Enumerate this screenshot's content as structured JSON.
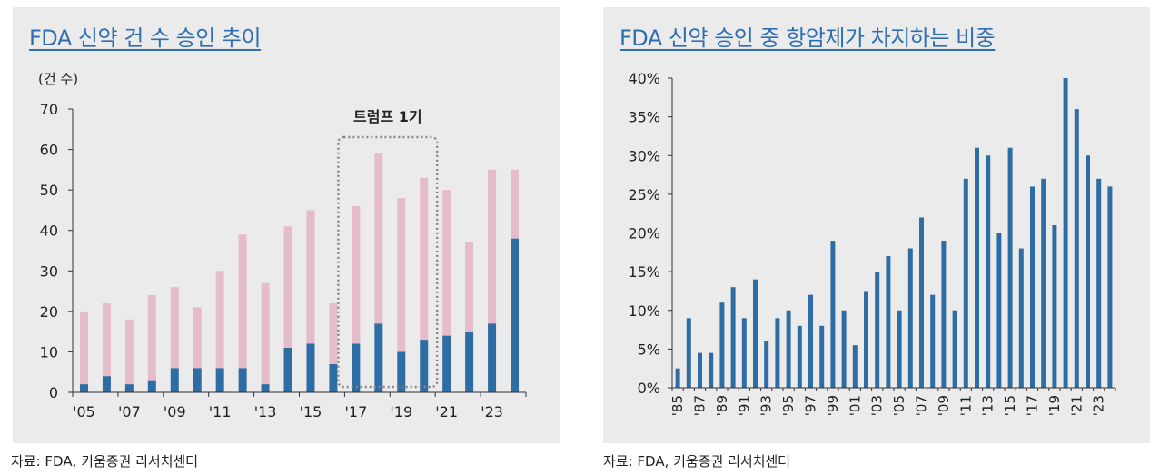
{
  "left": {
    "title": "FDA 신약 건 수 승인 추이",
    "unit_label": "(건 수)",
    "source": "자료: FDA, 키움증권 리서치센터",
    "annotation": "트럼프 1기",
    "chart_data": {
      "type": "bar",
      "stacked": true,
      "title": "FDA 신약 건 수 승인 추이",
      "ylabel": "(건 수)",
      "ylim": [
        0,
        70
      ],
      "yticks": [
        0,
        10,
        20,
        30,
        40,
        50,
        60,
        70
      ],
      "categories": [
        "2005",
        "2006",
        "2007",
        "2008",
        "2009",
        "2010",
        "2011",
        "2012",
        "2013",
        "2014",
        "2015",
        "2016",
        "2017",
        "2018",
        "2019",
        "2020",
        "2021",
        "2022",
        "2023",
        "2024"
      ],
      "xtick_labels": [
        "'05",
        "'07",
        "'09",
        "'11",
        "'13",
        "'15",
        "'17",
        "'19",
        "'21",
        "'23"
      ],
      "series": [
        {
          "values": [
            2,
            4,
            2,
            3,
            6,
            6,
            6,
            6,
            2,
            11,
            12,
            7,
            12,
            17,
            10,
            13,
            14,
            15,
            17,
            38
          ],
          "color": "#2e6da4"
        },
        {
          "values": [
            18,
            18,
            16,
            21,
            20,
            15,
            24,
            33,
            25,
            30,
            33,
            15,
            34,
            42,
            38,
            40,
            36,
            22,
            38,
            17
          ],
          "color": "#e6bcca"
        }
      ],
      "totals": [
        20,
        22,
        18,
        24,
        26,
        21,
        30,
        39,
        27,
        41,
        45,
        22,
        46,
        59,
        48,
        53,
        50,
        37,
        55,
        55
      ],
      "highlight": {
        "label": "트럼프 1기",
        "from": "2017",
        "to": "2020"
      }
    }
  },
  "right": {
    "title": "FDA 신약 승인 중 항암제가 차지하는 비중",
    "source": "자료: FDA, 키움증권 리서치센터",
    "chart_data": {
      "type": "bar",
      "title": "FDA 신약 승인 중 항암제가 차지하는 비중",
      "ylim": [
        0,
        40
      ],
      "yticks": [
        0,
        5,
        10,
        15,
        20,
        25,
        30,
        35,
        40
      ],
      "ytick_suffix": "%",
      "categories": [
        "1985",
        "1986",
        "1987",
        "1988",
        "1989",
        "1990",
        "1991",
        "1992",
        "1993",
        "1994",
        "1995",
        "1996",
        "1997",
        "1998",
        "1999",
        "2000",
        "2001",
        "2002",
        "2003",
        "2004",
        "2005",
        "2006",
        "2007",
        "2008",
        "2009",
        "2010",
        "2011",
        "2012",
        "2013",
        "2014",
        "2015",
        "2016",
        "2017",
        "2018",
        "2019",
        "2020",
        "2021",
        "2022",
        "2023",
        "2024"
      ],
      "xtick_labels": [
        "'85",
        "'87",
        "'89",
        "'91",
        "'93",
        "'95",
        "'97",
        "'99",
        "'01",
        "'03",
        "'05",
        "'07",
        "'09",
        "'11",
        "'13",
        "'15",
        "'17",
        "'19",
        "'21",
        "'23"
      ],
      "values": [
        2.5,
        9,
        4.5,
        4.5,
        11,
        13,
        9,
        14,
        6,
        9,
        10,
        8,
        12,
        8,
        19,
        10,
        5.5,
        12.5,
        15,
        17,
        10,
        18,
        22,
        12,
        19,
        10,
        27,
        31,
        30,
        20,
        31,
        18,
        26,
        27,
        21,
        40,
        36,
        30,
        27,
        26
      ],
      "color": "#2e6da4"
    }
  }
}
